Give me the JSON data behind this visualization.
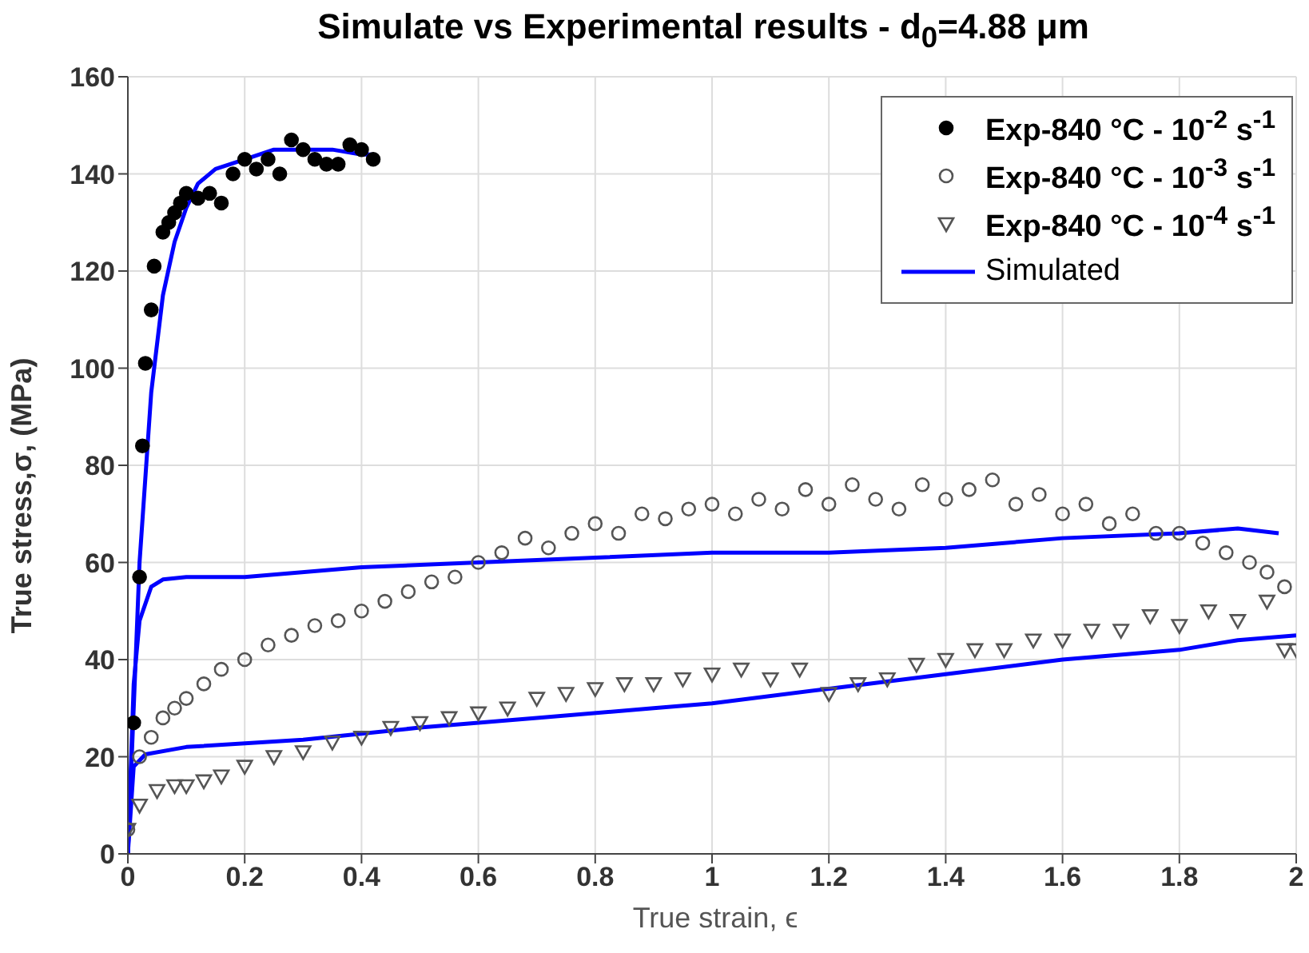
{
  "chart_data": {
    "type": "scatter",
    "title": "Simulate vs Experimental results - d$_{0}$=4.88 μm",
    "xlabel": "True strain, ϵ",
    "ylabel": "True stress,σ, (MPa)",
    "xlim": [
      0,
      2
    ],
    "xticks": [
      0,
      0.2,
      0.4,
      0.6,
      0.8,
      1,
      1.2,
      1.4,
      1.6,
      1.8,
      2
    ],
    "ylim": [
      0,
      160
    ],
    "yticks": [
      0,
      20,
      40,
      60,
      80,
      100,
      120,
      140,
      160
    ],
    "grid": true,
    "legend": "top right",
    "series": [
      {
        "name": "Exp-840 °C - 10$^{-2}$ s$^{-1}$",
        "marker": "circle",
        "color": "#000000",
        "x": [
          0.01,
          0.02,
          0.025,
          0.03,
          0.04,
          0.045,
          0.06,
          0.07,
          0.08,
          0.09,
          0.1,
          0.12,
          0.14,
          0.16,
          0.18,
          0.2,
          0.22,
          0.24,
          0.26,
          0.28,
          0.3,
          0.32,
          0.34,
          0.36,
          0.38,
          0.4,
          0.42
        ],
        "values": [
          27,
          57,
          84,
          101,
          112,
          121,
          128,
          130,
          132,
          134,
          136,
          135,
          136,
          134,
          140,
          143,
          141,
          143,
          140,
          147,
          145,
          143,
          142,
          142,
          146,
          145,
          143
        ]
      },
      {
        "name": "Exp-840 °C - 10$^{-3}$ s$^{-1}$",
        "marker": "circle",
        "color": "#555555",
        "x": [
          0,
          0.02,
          0.04,
          0.06,
          0.08,
          0.1,
          0.13,
          0.16,
          0.2,
          0.24,
          0.28,
          0.32,
          0.36,
          0.4,
          0.44,
          0.48,
          0.52,
          0.56,
          0.6,
          0.64,
          0.68,
          0.72,
          0.76,
          0.8,
          0.84,
          0.88,
          0.92,
          0.96,
          1,
          1.04,
          1.08,
          1.12,
          1.16,
          1.2,
          1.24,
          1.28,
          1.32,
          1.36,
          1.4,
          1.44,
          1.48,
          1.52,
          1.56,
          1.6,
          1.64,
          1.68,
          1.72,
          1.76,
          1.8,
          1.84,
          1.88,
          1.92,
          1.95,
          1.98
        ],
        "values": [
          5,
          20,
          24,
          28,
          30,
          32,
          35,
          38,
          40,
          43,
          45,
          47,
          48,
          50,
          52,
          54,
          56,
          57,
          60,
          62,
          65,
          63,
          66,
          68,
          66,
          70,
          69,
          71,
          72,
          70,
          73,
          71,
          75,
          72,
          76,
          73,
          71,
          76,
          73,
          75,
          77,
          72,
          74,
          70,
          72,
          68,
          70,
          66,
          66,
          64,
          62,
          60,
          58,
          55
        ]
      },
      {
        "name": "Exp-840 °C - 10$^{-4}$ s$^{-1}$",
        "marker": "triangle",
        "color": "#555555",
        "x": [
          0,
          0.02,
          0.05,
          0.08,
          0.1,
          0.13,
          0.16,
          0.2,
          0.25,
          0.3,
          0.35,
          0.4,
          0.45,
          0.5,
          0.55,
          0.6,
          0.65,
          0.7,
          0.75,
          0.8,
          0.85,
          0.9,
          0.95,
          1,
          1.05,
          1.1,
          1.15,
          1.2,
          1.25,
          1.3,
          1.35,
          1.4,
          1.45,
          1.5,
          1.55,
          1.6,
          1.65,
          1.7,
          1.75,
          1.8,
          1.85,
          1.9,
          1.95,
          1.98,
          2
        ],
        "values": [
          5,
          10,
          13,
          14,
          14,
          15,
          16,
          18,
          20,
          21,
          23,
          24,
          26,
          27,
          28,
          29,
          30,
          32,
          33,
          34,
          35,
          35,
          36,
          37,
          38,
          36,
          38,
          33,
          35,
          36,
          39,
          40,
          42,
          42,
          44,
          44,
          46,
          46,
          49,
          47,
          50,
          48,
          52,
          42,
          42
        ]
      },
      {
        "name": "Simulated",
        "type": "line",
        "line_style": "solid",
        "marker": "none",
        "color": "#0000ff",
        "x": [
          0,
          0.02,
          0.04,
          0.06,
          0.08,
          0.1,
          0.12,
          0.15,
          0.2,
          0.25,
          0.3,
          0.35,
          0.4,
          0.42
        ],
        "values": [
          0,
          60,
          95,
          115,
          126,
          133,
          138,
          141,
          143,
          145,
          145,
          145,
          144,
          144
        ]
      },
      {
        "type": "line",
        "line_style": "solid",
        "marker": "none",
        "color": "#0000ff",
        "x": [
          0,
          0.01,
          0.02,
          0.04,
          0.06,
          0.1,
          0.2,
          0.4,
          0.6,
          0.8,
          1,
          1.2,
          1.4,
          1.6,
          1.8,
          1.9,
          1.97
        ],
        "values": [
          0,
          35,
          48,
          55,
          56.5,
          57,
          57,
          59,
          60,
          61,
          62,
          62,
          63,
          65,
          66,
          67,
          66
        ]
      },
      {
        "type": "line",
        "line_style": "solid",
        "marker": "none",
        "color": "#0000ff",
        "x": [
          0,
          0.01,
          0.03,
          0.1,
          0.3,
          0.5,
          0.7,
          0.9,
          1,
          1.2,
          1.4,
          1.6,
          1.8,
          1.9,
          2
        ],
        "values": [
          0,
          18,
          20.5,
          22,
          23.5,
          26,
          28,
          30,
          31,
          34,
          37,
          40,
          42,
          44,
          45
        ]
      }
    ]
  }
}
